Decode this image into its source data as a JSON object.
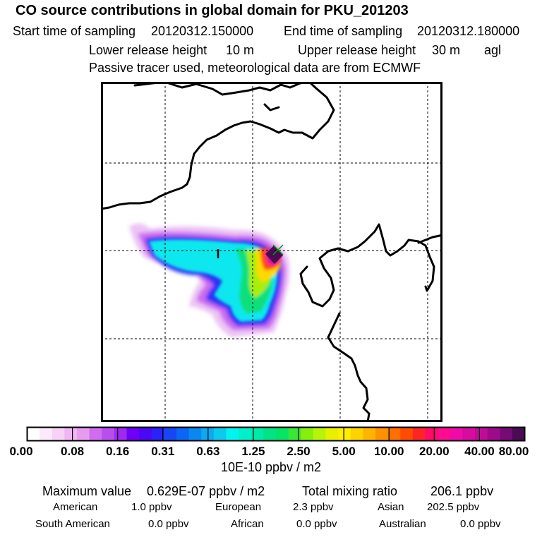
{
  "header": {
    "title": "CO  source contributions in global domain for PKU_201203",
    "start_label": "Start time of sampling",
    "start_value": "20120312.150000",
    "end_label": "End time of sampling",
    "end_value": "20120312.180000",
    "lower_label": "Lower release height",
    "lower_value": "10 m",
    "upper_label": "Upper release height",
    "upper_value": "30 m",
    "upper_ref": "agl",
    "note": "Passive tracer used, meteorological data are from ECMWF"
  },
  "colorbar": {
    "colors": [
      "#ffffff",
      "#fbeafb",
      "#f6d2f6",
      "#efb6f2",
      "#e69cee",
      "#cf6cf0",
      "#b94df0",
      "#a028f2",
      "#6e00f8",
      "#4a08f6",
      "#2a22f8",
      "#1846f6",
      "#0a66f4",
      "#0a88f2",
      "#0aaaf2",
      "#0acaee",
      "#00f4f0",
      "#00f0cc",
      "#00eaaa",
      "#00e486",
      "#06e466",
      "#3ae63a",
      "#86f00a",
      "#b8f40a",
      "#e8f000",
      "#ffee00",
      "#ffd200",
      "#ffb400",
      "#ff9200",
      "#ff7000",
      "#ff4c00",
      "#ff2424",
      "#ff0a6a",
      "#ff0a90",
      "#f00aa8",
      "#d80aa0",
      "#c00a98",
      "#9e0a8c",
      "#780a76",
      "#4a0a54"
    ],
    "tick_labels": [
      "0.00",
      "0.08",
      "0.16",
      "0.31",
      "0.63",
      "1.25",
      "2.50",
      "5.00",
      "10.00",
      "20.00",
      "40.00",
      "80.00"
    ],
    "unit": "10E-10 ppbv / m2"
  },
  "summary": {
    "max_label": "Maximum value",
    "max_value": "0.629E-07 ppbv / m2",
    "total_label": "Total mixing ratio",
    "total_value": "206.1 ppbv",
    "regions": [
      {
        "name": "American",
        "value": "1.0 ppbv"
      },
      {
        "name": "European",
        "value": "2.3 ppbv"
      },
      {
        "name": "Asian",
        "value": "202.5 ppbv"
      },
      {
        "name": "South American",
        "value": "0.0 ppbv"
      },
      {
        "name": "African",
        "value": "0.0 ppbv"
      },
      {
        "name": "Australian",
        "value": "0.0 ppbv"
      }
    ]
  },
  "map": {
    "station_marker": "x-marker",
    "colors": {
      "frame": "#000000",
      "coast": "#000000",
      "grid": "#000000"
    }
  }
}
